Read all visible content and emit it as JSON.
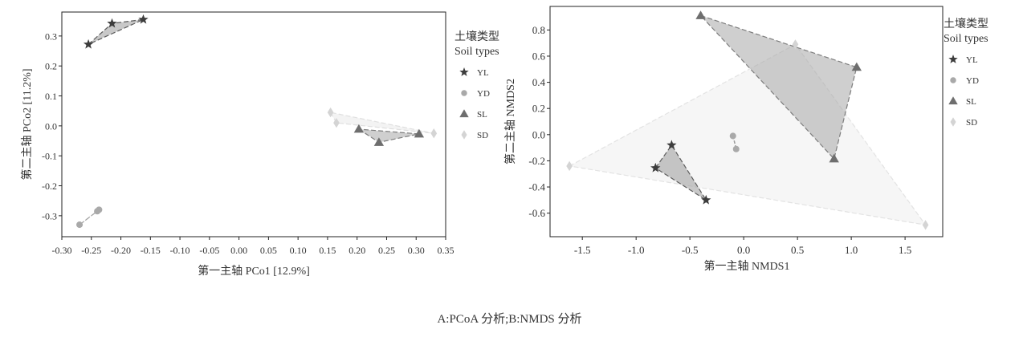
{
  "caption": "A:PCoA 分析;B:NMDS 分析",
  "colors": {
    "YL": "#3d3d3d",
    "YD": "#a9a9a9",
    "SL": "#6e6e6e",
    "SD": "#d4d4d4"
  },
  "chart_data": [
    {
      "type": "scatter",
      "title": "",
      "xlabel": "第一主轴 PCo1 [12.9%]",
      "ylabel": "第二主轴 PCo2 [11.2%]",
      "xlim": [
        -0.3,
        0.35
      ],
      "ylim": [
        -0.37,
        0.38
      ],
      "xticks": [
        -0.3,
        -0.25,
        -0.2,
        -0.15,
        -0.1,
        -0.05,
        0.0,
        0.05,
        0.1,
        0.15,
        0.2,
        0.25,
        0.3,
        0.35
      ],
      "xtick_labels": [
        "-0.30",
        "-0.25",
        "-0.20",
        "-0.15",
        "-0.10",
        "-0.05",
        "0.00",
        "0.05",
        "0.10",
        "0.15",
        "0.20",
        "0.25",
        "0.30",
        "0.35"
      ],
      "yticks": [
        0.3,
        0.2,
        0.1,
        0.0,
        -0.1,
        -0.2,
        -0.3
      ],
      "ytick_labels": [
        "0.3",
        "0.2",
        "0.1",
        "0.0",
        "-0.1",
        "-0.2",
        "-0.3"
      ],
      "legend": {
        "title_cn": "土壤类型",
        "title_en": "Soil types",
        "position": "right",
        "entries": [
          "YL",
          "YD",
          "SL",
          "SD"
        ]
      },
      "series": [
        {
          "name": "YL",
          "marker": "star",
          "points": [
            [
              -0.255,
              0.272
            ],
            [
              -0.215,
              0.342
            ],
            [
              -0.162,
              0.355
            ]
          ]
        },
        {
          "name": "YD",
          "marker": "circle",
          "points": [
            [
              -0.27,
              -0.33
            ],
            [
              -0.24,
              -0.285
            ],
            [
              -0.237,
              -0.28
            ]
          ]
        },
        {
          "name": "SL",
          "marker": "triangle",
          "points": [
            [
              0.203,
              -0.011
            ],
            [
              0.237,
              -0.055
            ],
            [
              0.305,
              -0.027
            ]
          ]
        },
        {
          "name": "SD",
          "marker": "diamond",
          "points": [
            [
              0.155,
              0.045
            ],
            [
              0.165,
              0.01
            ],
            [
              0.33,
              -0.025
            ]
          ]
        }
      ]
    },
    {
      "type": "scatter",
      "title": "",
      "xlabel": "第一主轴 NMDS1",
      "ylabel": "第二主轴 NMDS2",
      "xlim": [
        -1.8,
        1.85
      ],
      "ylim": [
        -0.78,
        0.98
      ],
      "xticks": [
        -1.5,
        -1.0,
        -0.5,
        0.0,
        0.5,
        1.0,
        1.5
      ],
      "xtick_labels": [
        "-1.5",
        "-1.0",
        "-0.5",
        "0.0",
        "0.5",
        "1.0",
        "1.5"
      ],
      "yticks": [
        0.8,
        0.6,
        0.4,
        0.2,
        0.0,
        -0.2,
        -0.4,
        -0.6
      ],
      "ytick_labels": [
        "0.8",
        "0.6",
        "0.4",
        "0.2",
        "0.0",
        "-0.2",
        "-0.4",
        "-0.6"
      ],
      "legend": {
        "title_cn": "土壤类型",
        "title_en": "Soil types",
        "position": "right",
        "entries": [
          "YL",
          "YD",
          "SL",
          "SD"
        ]
      },
      "series": [
        {
          "name": "YL",
          "marker": "star",
          "points": [
            [
              -0.82,
              -0.255
            ],
            [
              -0.67,
              -0.08
            ],
            [
              -0.35,
              -0.5
            ]
          ]
        },
        {
          "name": "YD",
          "marker": "circle",
          "points": [
            [
              -0.1,
              -0.01
            ],
            [
              -0.07,
              -0.11
            ]
          ]
        },
        {
          "name": "SL",
          "marker": "triangle",
          "points": [
            [
              -0.4,
              0.91
            ],
            [
              1.05,
              0.515
            ],
            [
              0.84,
              -0.185
            ]
          ]
        },
        {
          "name": "SD",
          "marker": "diamond",
          "points": [
            [
              -1.62,
              -0.24
            ],
            [
              0.48,
              0.69
            ],
            [
              1.69,
              -0.69
            ]
          ]
        }
      ]
    }
  ]
}
